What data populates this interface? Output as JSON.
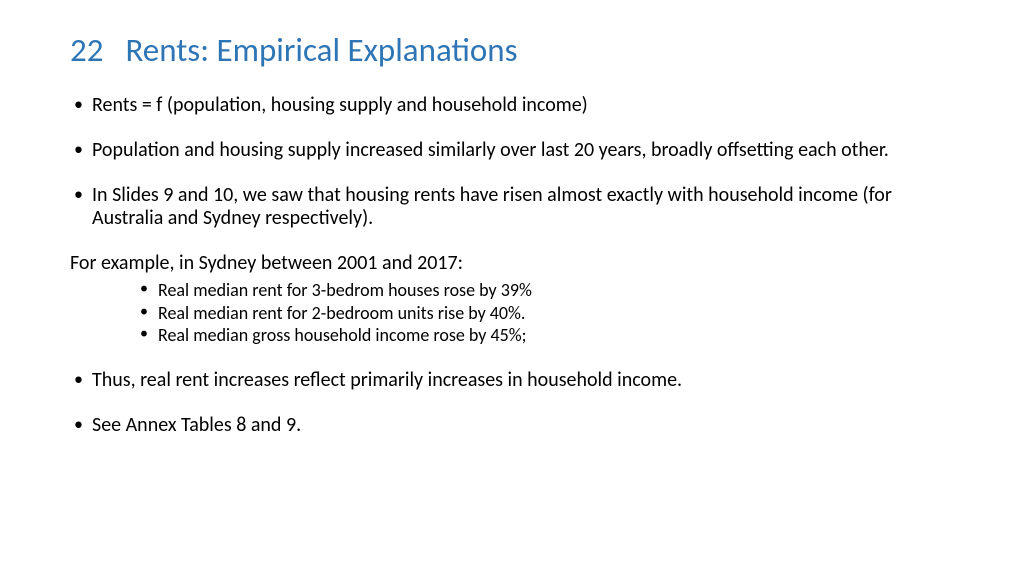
{
  "colors": {
    "title": "#2e75b6",
    "body_text": "#000000",
    "background": "#ffffff"
  },
  "typography": {
    "title_fontsize": 33,
    "body_fontsize": 20,
    "sub_fontsize": 18,
    "font_family": "Calibri"
  },
  "slide": {
    "number": "22",
    "title": "Rents: Empirical Explanations"
  },
  "bullets_top": [
    "Rents = f (population, housing supply and household income)",
    "Population and housing supply increased similarly over last 20 years, broadly offsetting each other.",
    "In Slides 9 and 10, we saw that housing rents have risen almost exactly with household income (for Australia and Sydney respectively)."
  ],
  "example_intro": "For example, in Sydney between 2001 and 2017:",
  "example_subs": [
    "Real median rent for 3-bedrom houses rose by 39%",
    "Real median rent for 2-bedroom units rise by 40%.",
    "Real median gross household income rose by 45%;"
  ],
  "bullets_bottom": [
    "Thus, real rent increases reflect primarily increases in household income.",
    "See Annex Tables 8 and 9."
  ]
}
